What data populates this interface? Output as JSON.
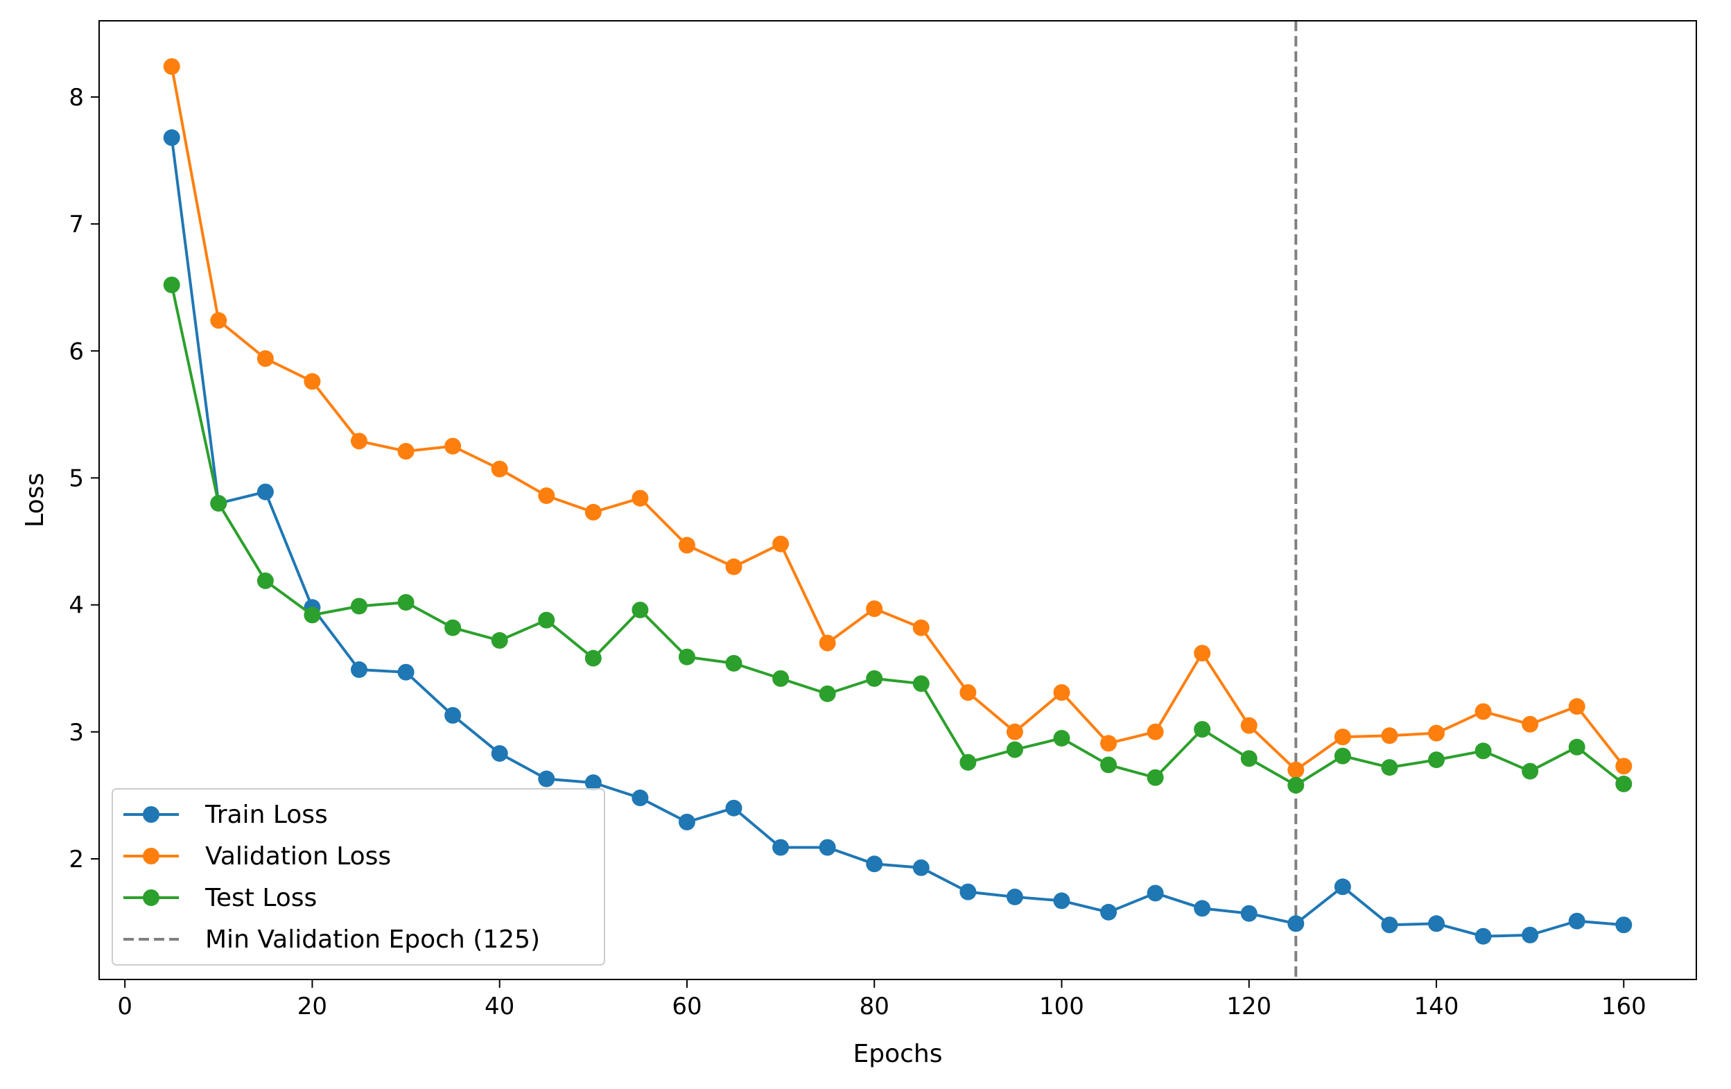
{
  "chart_data": {
    "type": "line",
    "title": "",
    "xlabel": "Epochs",
    "ylabel": "Loss",
    "xlim": [
      -2.75,
      167.75
    ],
    "ylim": [
      1.05,
      8.6
    ],
    "xticks": [
      0,
      20,
      40,
      60,
      80,
      100,
      120,
      140,
      160
    ],
    "yticks": [
      2,
      3,
      4,
      5,
      6,
      7,
      8
    ],
    "grid": false,
    "legend_position": "lower-left",
    "x": [
      5,
      10,
      15,
      20,
      25,
      30,
      35,
      40,
      45,
      50,
      55,
      60,
      65,
      70,
      75,
      80,
      85,
      90,
      95,
      100,
      105,
      110,
      115,
      120,
      125,
      130,
      135,
      140,
      145,
      150,
      155,
      160
    ],
    "series": [
      {
        "name": "Train Loss",
        "color": "#1f77b4",
        "values": [
          7.68,
          4.8,
          4.89,
          3.98,
          3.49,
          3.47,
          3.13,
          2.83,
          2.63,
          2.6,
          2.48,
          2.29,
          2.4,
          2.09,
          2.09,
          1.96,
          1.93,
          1.74,
          1.7,
          1.67,
          1.58,
          1.73,
          1.61,
          1.57,
          1.49,
          1.78,
          1.48,
          1.49,
          1.39,
          1.4,
          1.51,
          1.48
        ]
      },
      {
        "name": "Validation Loss",
        "color": "#ff7f0e",
        "values": [
          8.24,
          6.24,
          5.94,
          5.76,
          5.29,
          5.21,
          5.25,
          5.07,
          4.86,
          4.73,
          4.84,
          4.47,
          4.3,
          4.48,
          3.7,
          3.97,
          3.82,
          3.31,
          3.0,
          3.31,
          2.91,
          3.0,
          3.62,
          3.05,
          2.7,
          2.96,
          2.97,
          2.99,
          3.16,
          3.06,
          3.2,
          2.73
        ]
      },
      {
        "name": "Test Loss",
        "color": "#2ca02c",
        "values": [
          6.52,
          4.8,
          4.19,
          3.92,
          3.99,
          4.02,
          3.82,
          3.72,
          3.88,
          3.58,
          3.96,
          3.59,
          3.54,
          3.42,
          3.3,
          3.42,
          3.38,
          2.76,
          2.86,
          2.95,
          2.74,
          2.64,
          3.02,
          2.79,
          2.58,
          2.81,
          2.72,
          2.78,
          2.85,
          2.69,
          2.88,
          2.59
        ]
      }
    ],
    "vline": {
      "name": "Min Validation Epoch (125)",
      "x": 125,
      "color": "#808080",
      "style": "dashed"
    }
  }
}
